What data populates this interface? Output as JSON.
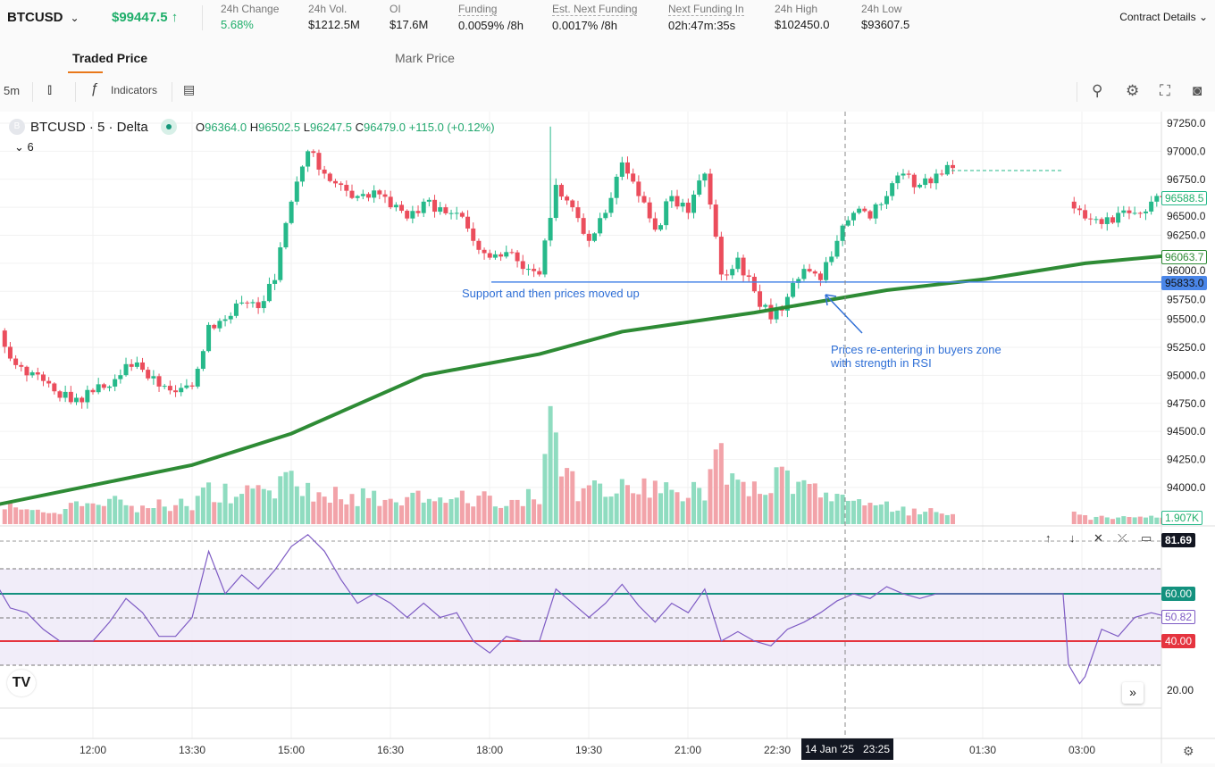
{
  "header": {
    "symbol": "BTCUSD",
    "last_price": "$99447.5",
    "last_price_arrow": "↑",
    "stats": [
      {
        "label": "24h Change",
        "value": "5.68%"
      },
      {
        "label": "24h Vol.",
        "value": "$1212.5M"
      },
      {
        "label": "OI",
        "value": "$17.6M"
      },
      {
        "label": "Funding",
        "value": "0.0059% /8h"
      },
      {
        "label": "Est. Next Funding",
        "value": "0.0017% /8h"
      },
      {
        "label": "Next Funding In",
        "value": "02h:47m:35s"
      },
      {
        "label": "24h High",
        "value": "$102450.0"
      },
      {
        "label": "24h Low",
        "value": "$93607.5"
      }
    ],
    "contract_details": "Contract Details"
  },
  "tabs": [
    {
      "label": "Traded Price",
      "active": true
    },
    {
      "label": "Mark Price",
      "active": false
    }
  ],
  "toolbar": {
    "interval": "5m",
    "indicators": "Indicators"
  },
  "legend": {
    "badge": "B",
    "title": "BTCUSD · 5 · Delta",
    "o_label": "O",
    "o": "96364.0",
    "h_label": "H",
    "h": "96502.5",
    "l_label": "L",
    "l": "96247.5",
    "c_label": "C",
    "c": "96479.0",
    "change": "+115.0 (+0.12%)",
    "collapsed_count": "6"
  },
  "annotations": {
    "support": "Support and then prices moved up",
    "reentry_line1": "Prices re-entering in buyers zone",
    "reentry_line2": "with strength in RSI"
  },
  "price_tags": {
    "last": "96588.5",
    "ma": "96063.7",
    "support": "95833.0",
    "volume": "1.907K",
    "rsi_high": "81.69",
    "rsi_60": "60.00",
    "rsi_current": "50.82",
    "rsi_40": "40.00"
  },
  "crosshair_label": "14 Jan '25   23:25",
  "time_axis": [
    "12:00",
    "13:30",
    "15:00",
    "16:30",
    "18:00",
    "19:30",
    "21:00",
    "22:30",
    "01:30",
    "03:00"
  ],
  "colors": {
    "up": "#26b98a",
    "down": "#eb4d5c",
    "ma": "#2e8b35",
    "support": "#4a86e8",
    "rsi": "#7e5bc4",
    "rsi_upper": "#13917e",
    "rsi_lower": "#e5343f",
    "accent": "#e8781a"
  },
  "chart_data": {
    "type": "candlestick",
    "price_ticks": [
      "97250.0",
      "97000.0",
      "96750.0",
      "96500.0",
      "96250.0",
      "96000.0",
      "95750.0",
      "95500.0",
      "95250.0",
      "95000.0",
      "94750.0",
      "94500.0",
      "94250.0",
      "94000.0"
    ],
    "rsi_ticks": [
      "20.00"
    ],
    "close_series": [
      [
        "10:35",
        95400
      ],
      [
        "10:45",
        95150
      ],
      [
        "11:00",
        95000
      ],
      [
        "11:15",
        94950
      ],
      [
        "11:30",
        94800
      ],
      [
        "11:45",
        94800
      ],
      [
        "12:00",
        94850
      ],
      [
        "12:15",
        94900
      ],
      [
        "12:30",
        95100
      ],
      [
        "12:45",
        95050
      ],
      [
        "13:00",
        94900
      ],
      [
        "13:15",
        94850
      ],
      [
        "13:30",
        94900
      ],
      [
        "13:45",
        95450
      ],
      [
        "14:00",
        95500
      ],
      [
        "14:15",
        95650
      ],
      [
        "14:30",
        95600
      ],
      [
        "14:45",
        95850
      ],
      [
        "15:00",
        96550
      ],
      [
        "15:15",
        97000
      ],
      [
        "15:30",
        96800
      ],
      [
        "15:45",
        96700
      ],
      [
        "16:00",
        96600
      ],
      [
        "16:15",
        96650
      ],
      [
        "16:30",
        96500
      ],
      [
        "16:45",
        96400
      ],
      [
        "17:00",
        96550
      ],
      [
        "17:15",
        96500
      ],
      [
        "17:30",
        96450
      ],
      [
        "17:45",
        96200
      ],
      [
        "18:00",
        96050
      ],
      [
        "18:15",
        96100
      ],
      [
        "18:30",
        95950
      ],
      [
        "18:45",
        95900
      ],
      [
        "19:00",
        96700
      ],
      [
        "19:15",
        96500
      ],
      [
        "19:30",
        96200
      ],
      [
        "19:45",
        96450
      ],
      [
        "20:00",
        96900
      ],
      [
        "20:15",
        96600
      ],
      [
        "20:30",
        96300
      ],
      [
        "20:45",
        96600
      ],
      [
        "21:00",
        96450
      ],
      [
        "21:15",
        96800
      ],
      [
        "21:30",
        95900
      ],
      [
        "21:45",
        96050
      ],
      [
        "22:00",
        95750
      ],
      [
        "22:15",
        95500
      ],
      [
        "22:30",
        95700
      ],
      [
        "22:45",
        95950
      ],
      [
        "23:00",
        95850
      ],
      [
        "23:15",
        96200
      ],
      [
        "23:30",
        96450
      ],
      [
        "23:45",
        96400
      ],
      [
        "00:00",
        96600
      ],
      [
        "00:15",
        96800
      ],
      [
        "00:30",
        96700
      ],
      [
        "00:45",
        96800
      ],
      [
        "01:00",
        96850
      ],
      null,
      [
        "02:45",
        96550
      ],
      [
        "03:00",
        96400
      ],
      [
        "03:15",
        96350
      ],
      [
        "03:30",
        96450
      ],
      [
        "03:45",
        96450
      ],
      [
        "04:00",
        96550
      ],
      [
        "04:10",
        96588.5
      ]
    ],
    "moving_average": [
      [
        "10:35",
        93850
      ],
      [
        "12:15",
        94050
      ],
      [
        "13:30",
        94200
      ],
      [
        "15:00",
        94480
      ],
      [
        "17:00",
        95000
      ],
      [
        "18:45",
        95190
      ],
      [
        "20:00",
        95390
      ],
      [
        "22:00",
        95560
      ],
      [
        "00:00",
        95760
      ],
      [
        "01:30",
        95860
      ],
      [
        "03:00",
        96000
      ],
      [
        "04:10",
        96063.7
      ]
    ],
    "volume_k": [
      6,
      5,
      4,
      5,
      4,
      6,
      5,
      6,
      7,
      5,
      6,
      5,
      6,
      12,
      10,
      9,
      11,
      10,
      14,
      12,
      10,
      9,
      8,
      9,
      7,
      8,
      9,
      8,
      7,
      8,
      9,
      7,
      8,
      9,
      29,
      14,
      10,
      11,
      12,
      10,
      11,
      10,
      9,
      10,
      20,
      16,
      13,
      12,
      14,
      12,
      11,
      10,
      9,
      8,
      6,
      5,
      4,
      4,
      3,
      null,
      2,
      3,
      2,
      2,
      2,
      2,
      2
    ],
    "rsi": [
      [
        "10:35",
        62
      ],
      [
        "10:45",
        54
      ],
      [
        "11:00",
        52
      ],
      [
        "11:15",
        45
      ],
      [
        "11:30",
        40
      ],
      [
        "11:45",
        40
      ],
      [
        "12:00",
        40
      ],
      [
        "12:15",
        48
      ],
      [
        "12:30",
        58
      ],
      [
        "12:45",
        52
      ],
      [
        "13:00",
        42
      ],
      [
        "13:15",
        42
      ],
      [
        "13:30",
        50
      ],
      [
        "13:45",
        78
      ],
      [
        "14:00",
        60
      ],
      [
        "14:15",
        68
      ],
      [
        "14:30",
        62
      ],
      [
        "14:45",
        70
      ],
      [
        "15:00",
        80
      ],
      [
        "15:15",
        85
      ],
      [
        "15:30",
        78
      ],
      [
        "15:45",
        66
      ],
      [
        "16:00",
        56
      ],
      [
        "16:15",
        60
      ],
      [
        "16:30",
        56
      ],
      [
        "16:45",
        50
      ],
      [
        "17:00",
        56
      ],
      [
        "17:15",
        50
      ],
      [
        "17:30",
        52
      ],
      [
        "17:45",
        40
      ],
      [
        "18:00",
        35
      ],
      [
        "18:15",
        42
      ],
      [
        "18:30",
        40
      ],
      [
        "18:45",
        40
      ],
      [
        "19:00",
        62
      ],
      [
        "19:15",
        56
      ],
      [
        "19:30",
        50
      ],
      [
        "19:45",
        56
      ],
      [
        "20:00",
        64
      ],
      [
        "20:15",
        55
      ],
      [
        "20:30",
        48
      ],
      [
        "20:45",
        56
      ],
      [
        "21:00",
        52
      ],
      [
        "21:15",
        62
      ],
      [
        "21:30",
        40
      ],
      [
        "21:45",
        44
      ],
      [
        "22:00",
        40
      ],
      [
        "22:15",
        38
      ],
      [
        "22:30",
        45
      ],
      [
        "22:45",
        48
      ],
      [
        "23:00",
        52
      ],
      [
        "23:15",
        57
      ],
      [
        "23:30",
        60
      ],
      [
        "23:45",
        58
      ],
      [
        "00:00",
        63
      ],
      [
        "00:15",
        60
      ],
      [
        "00:30",
        58
      ],
      [
        "00:45",
        60
      ],
      [
        "01:00",
        60
      ],
      [
        "02:40",
        60
      ],
      [
        "02:45",
        30
      ],
      [
        "02:55",
        22
      ],
      [
        "03:00",
        25
      ],
      [
        "03:15",
        45
      ],
      [
        "03:30",
        42
      ],
      [
        "03:45",
        50
      ],
      [
        "04:00",
        52
      ],
      [
        "04:10",
        50.82
      ]
    ],
    "rsi_levels": {
      "upper": 60,
      "lower": 40,
      "band": [
        30,
        70
      ],
      "mid": 50
    },
    "support_level": 95833.0
  }
}
